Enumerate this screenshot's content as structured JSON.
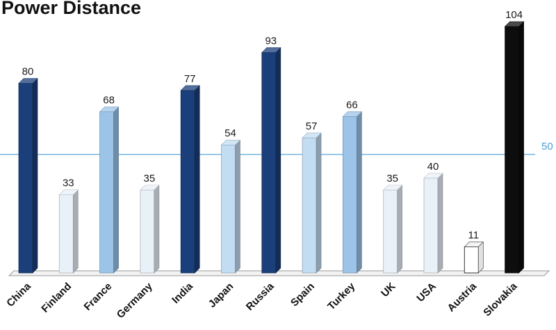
{
  "chart_data": {
    "type": "bar",
    "title": "Power Distance",
    "categories": [
      "China",
      "Finland",
      "France",
      "Germany",
      "India",
      "Japan",
      "Russia",
      "Spain",
      "Turkey",
      "UK",
      "USA",
      "Austria",
      "Slovakia"
    ],
    "values": [
      80,
      33,
      68,
      35,
      77,
      54,
      93,
      57,
      66,
      35,
      40,
      11,
      104
    ],
    "bar_colors": [
      "#1b3f7a",
      "#e8f0f8",
      "#9cc4e8",
      "#e8f0f8",
      "#1b3f7a",
      "#c2dcf2",
      "#1b3f7a",
      "#c2dcf2",
      "#9cc4e8",
      "#e8f0f8",
      "#e8f0f8",
      "#ffffff",
      "#0d0d0d"
    ],
    "reference_line": {
      "value": 50,
      "label": "50",
      "color": "#4a9fd8"
    },
    "ylim": [
      0,
      104
    ],
    "grid": false,
    "legend": "none"
  }
}
